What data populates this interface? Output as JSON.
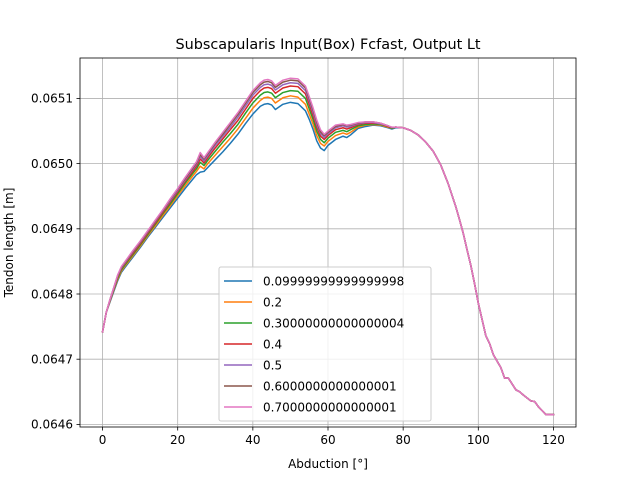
{
  "chart_data": {
    "type": "line",
    "title": "Subscapularis Input(Box) Fcfast, Output Lt",
    "xlabel": "Abduction [°]",
    "ylabel": "Tendon length [m]",
    "xlim": [
      -6,
      126
    ],
    "ylim": [
      0.064596,
      0.065162
    ],
    "xticks": [
      0,
      20,
      40,
      60,
      80,
      100,
      120
    ],
    "xtick_labels": [
      "0",
      "20",
      "40",
      "60",
      "80",
      "100",
      "120"
    ],
    "yticks": [
      0.0646,
      0.0647,
      0.0648,
      0.0649,
      0.065,
      0.0651
    ],
    "ytick_labels": [
      "0.0646",
      "0.0647",
      "0.0648",
      "0.0649",
      "0.0650",
      "0.0651"
    ],
    "grid": true,
    "legend_position": "lower center",
    "x": [
      0,
      1,
      2,
      3,
      4,
      5,
      6,
      8,
      10,
      12,
      14,
      16,
      18,
      20,
      22,
      24,
      25,
      26,
      27,
      28,
      30,
      32,
      34,
      36,
      38,
      40,
      41,
      42,
      43,
      44,
      45,
      46,
      48,
      50,
      52,
      54,
      55,
      56,
      57,
      58,
      59,
      60,
      62,
      64,
      65,
      66,
      68,
      70,
      72,
      74,
      76,
      77,
      78,
      80,
      82,
      84,
      86,
      88,
      90,
      92,
      94,
      95,
      96,
      97,
      98,
      99,
      100,
      102,
      103,
      104,
      106,
      107,
      108,
      110,
      111,
      112,
      114,
      115,
      116,
      118,
      119,
      120
    ],
    "series": [
      {
        "name": "0.09999999999999998",
        "color": "#1f77b4",
        "values": [
          0.064742,
          0.064772,
          0.064788,
          0.064804,
          0.06482,
          0.064833,
          0.064841,
          0.064856,
          0.064871,
          0.064887,
          0.064902,
          0.064917,
          0.064932,
          0.064947,
          0.064962,
          0.064976,
          0.064983,
          0.064987,
          0.064988,
          0.064994,
          0.065006,
          0.065018,
          0.065031,
          0.065045,
          0.065061,
          0.065076,
          0.065082,
          0.065088,
          0.065091,
          0.065092,
          0.06509,
          0.065083,
          0.065091,
          0.065094,
          0.065092,
          0.065081,
          0.065068,
          0.065053,
          0.065035,
          0.065024,
          0.06502,
          0.065028,
          0.065037,
          0.065042,
          0.06504,
          0.065044,
          0.065054,
          0.065057,
          0.065059,
          0.065058,
          0.065055,
          0.065053,
          0.065055,
          0.065055,
          0.065051,
          0.065044,
          0.065033,
          0.065019,
          0.064998,
          0.064969,
          0.064934,
          0.064914,
          0.064893,
          0.064868,
          0.064844,
          0.064816,
          0.064786,
          0.064736,
          0.064724,
          0.064707,
          0.064687,
          0.064671,
          0.064671,
          0.064653,
          0.06465,
          0.064645,
          0.064636,
          0.064635,
          0.064627,
          0.064615,
          0.064615,
          0.064615
        ]
      },
      {
        "name": "0.2",
        "color": "#ff7f0e",
        "values": [
          0.064742,
          0.064772,
          0.064789,
          0.064806,
          0.064822,
          0.064835,
          0.064843,
          0.064858,
          0.064873,
          0.064889,
          0.064904,
          0.06492,
          0.064935,
          0.064951,
          0.064966,
          0.064981,
          0.064988,
          0.064996,
          0.064992,
          0.065,
          0.065013,
          0.065026,
          0.065039,
          0.065053,
          0.065069,
          0.065085,
          0.065091,
          0.065097,
          0.065101,
          0.065102,
          0.0651,
          0.065093,
          0.065101,
          0.065104,
          0.065102,
          0.065091,
          0.065076,
          0.065061,
          0.065043,
          0.065031,
          0.065027,
          0.065034,
          0.065043,
          0.065047,
          0.065045,
          0.065048,
          0.065056,
          0.065059,
          0.06506,
          0.065059,
          0.065056,
          0.065054,
          0.065056,
          0.065055,
          0.065051,
          0.065044,
          0.065033,
          0.065019,
          0.064998,
          0.064969,
          0.064934,
          0.064914,
          0.064893,
          0.064868,
          0.064844,
          0.064816,
          0.064786,
          0.064736,
          0.064724,
          0.064707,
          0.064687,
          0.064671,
          0.064671,
          0.064653,
          0.06465,
          0.064645,
          0.064636,
          0.064635,
          0.064627,
          0.064615,
          0.064615,
          0.064615
        ]
      },
      {
        "name": "0.30000000000000004",
        "color": "#2ca02c",
        "values": [
          0.064742,
          0.064772,
          0.06479,
          0.064807,
          0.064824,
          0.064837,
          0.064845,
          0.06486,
          0.064875,
          0.064891,
          0.064907,
          0.064923,
          0.064938,
          0.064954,
          0.06497,
          0.064985,
          0.064992,
          0.065002,
          0.064997,
          0.065005,
          0.065019,
          0.065033,
          0.065046,
          0.06506,
          0.065077,
          0.065093,
          0.065099,
          0.065105,
          0.065109,
          0.06511,
          0.065108,
          0.065101,
          0.065109,
          0.065112,
          0.065111,
          0.0651,
          0.065084,
          0.065068,
          0.06505,
          0.065037,
          0.065032,
          0.065039,
          0.065048,
          0.065051,
          0.065049,
          0.065052,
          0.065058,
          0.06506,
          0.065061,
          0.06506,
          0.065057,
          0.065054,
          0.065056,
          0.065055,
          0.065051,
          0.065044,
          0.065033,
          0.065019,
          0.064998,
          0.064969,
          0.064934,
          0.064914,
          0.064893,
          0.064868,
          0.064844,
          0.064816,
          0.064786,
          0.064736,
          0.064724,
          0.064707,
          0.064687,
          0.064671,
          0.064671,
          0.064653,
          0.06465,
          0.064645,
          0.064636,
          0.064635,
          0.064627,
          0.064615,
          0.064615,
          0.064615
        ]
      },
      {
        "name": "0.4",
        "color": "#d62728",
        "values": [
          0.064742,
          0.064772,
          0.064791,
          0.064808,
          0.064826,
          0.064839,
          0.064847,
          0.064862,
          0.064877,
          0.064893,
          0.064909,
          0.064925,
          0.064941,
          0.064957,
          0.064973,
          0.064988,
          0.064996,
          0.065007,
          0.065001,
          0.065009,
          0.065024,
          0.065038,
          0.065052,
          0.065066,
          0.065083,
          0.0651,
          0.065106,
          0.065112,
          0.065116,
          0.065117,
          0.065115,
          0.065108,
          0.065116,
          0.065119,
          0.065118,
          0.065107,
          0.065091,
          0.065074,
          0.065056,
          0.065042,
          0.065037,
          0.065043,
          0.065052,
          0.065055,
          0.065053,
          0.065055,
          0.06506,
          0.065062,
          0.065062,
          0.065061,
          0.065057,
          0.065055,
          0.065056,
          0.065055,
          0.065051,
          0.065044,
          0.065033,
          0.065019,
          0.064998,
          0.064969,
          0.064934,
          0.064914,
          0.064893,
          0.064868,
          0.064844,
          0.064816,
          0.064786,
          0.064736,
          0.064724,
          0.064707,
          0.064687,
          0.064671,
          0.064671,
          0.064653,
          0.06465,
          0.064645,
          0.064636,
          0.064635,
          0.064627,
          0.064615,
          0.064615,
          0.064615
        ]
      },
      {
        "name": "0.5",
        "color": "#9467bd",
        "values": [
          0.064742,
          0.064772,
          0.064791,
          0.064809,
          0.064827,
          0.06484,
          0.064848,
          0.064864,
          0.064879,
          0.064895,
          0.064911,
          0.064927,
          0.064943,
          0.064959,
          0.064975,
          0.064991,
          0.064999,
          0.065011,
          0.065004,
          0.065012,
          0.065028,
          0.065042,
          0.065056,
          0.065071,
          0.065088,
          0.065105,
          0.065111,
          0.065117,
          0.065121,
          0.065122,
          0.06512,
          0.065113,
          0.065121,
          0.065124,
          0.065123,
          0.065112,
          0.065096,
          0.065079,
          0.06506,
          0.065046,
          0.06504,
          0.065046,
          0.065055,
          0.065058,
          0.065056,
          0.065057,
          0.065061,
          0.065063,
          0.065063,
          0.065061,
          0.065058,
          0.065055,
          0.065056,
          0.065055,
          0.065051,
          0.065044,
          0.065033,
          0.065019,
          0.064998,
          0.064969,
          0.064934,
          0.064914,
          0.064893,
          0.064868,
          0.064844,
          0.064816,
          0.064786,
          0.064736,
          0.064724,
          0.064707,
          0.064687,
          0.064671,
          0.064671,
          0.064653,
          0.06465,
          0.064645,
          0.064636,
          0.064635,
          0.064627,
          0.064615,
          0.064615,
          0.064615
        ]
      },
      {
        "name": "0.6000000000000001",
        "color": "#8c564b",
        "values": [
          0.064742,
          0.064772,
          0.064792,
          0.06481,
          0.064828,
          0.064841,
          0.064849,
          0.064865,
          0.06488,
          0.064896,
          0.064912,
          0.064928,
          0.064945,
          0.064961,
          0.064977,
          0.064993,
          0.065001,
          0.065014,
          0.065007,
          0.065015,
          0.065031,
          0.065045,
          0.06506,
          0.065075,
          0.065092,
          0.065109,
          0.065115,
          0.065121,
          0.065125,
          0.065126,
          0.065124,
          0.065117,
          0.065125,
          0.065128,
          0.065127,
          0.065116,
          0.0651,
          0.065083,
          0.065064,
          0.065049,
          0.065043,
          0.065048,
          0.065057,
          0.06506,
          0.065058,
          0.065059,
          0.065062,
          0.065064,
          0.065064,
          0.065062,
          0.065058,
          0.065055,
          0.065056,
          0.065055,
          0.065051,
          0.065044,
          0.065033,
          0.065019,
          0.064998,
          0.064969,
          0.064934,
          0.064914,
          0.064893,
          0.064868,
          0.064844,
          0.064816,
          0.064786,
          0.064736,
          0.064724,
          0.064707,
          0.064687,
          0.064671,
          0.064671,
          0.064653,
          0.06465,
          0.064645,
          0.064636,
          0.064635,
          0.064627,
          0.064615,
          0.064615,
          0.064615
        ]
      },
      {
        "name": "0.7000000000000001",
        "color": "#e377c2",
        "values": [
          0.064742,
          0.064772,
          0.064792,
          0.06481,
          0.064829,
          0.064842,
          0.06485,
          0.064866,
          0.064881,
          0.064897,
          0.064913,
          0.064929,
          0.064946,
          0.064962,
          0.064979,
          0.064995,
          0.065003,
          0.065017,
          0.065009,
          0.065017,
          0.065033,
          0.065048,
          0.065063,
          0.065078,
          0.065095,
          0.065112,
          0.065118,
          0.065124,
          0.065128,
          0.065129,
          0.065127,
          0.06512,
          0.065128,
          0.065131,
          0.06513,
          0.065119,
          0.065103,
          0.065086,
          0.065067,
          0.065052,
          0.065045,
          0.06505,
          0.065059,
          0.065061,
          0.065059,
          0.06506,
          0.065063,
          0.065064,
          0.065064,
          0.065062,
          0.065058,
          0.065056,
          0.065056,
          0.065055,
          0.065051,
          0.065044,
          0.065033,
          0.065019,
          0.064998,
          0.064969,
          0.064934,
          0.064914,
          0.064893,
          0.064868,
          0.064844,
          0.064816,
          0.064786,
          0.064736,
          0.064724,
          0.064707,
          0.064687,
          0.064671,
          0.064671,
          0.064653,
          0.06465,
          0.064645,
          0.064636,
          0.064635,
          0.064627,
          0.064615,
          0.064615,
          0.064615
        ]
      }
    ]
  }
}
